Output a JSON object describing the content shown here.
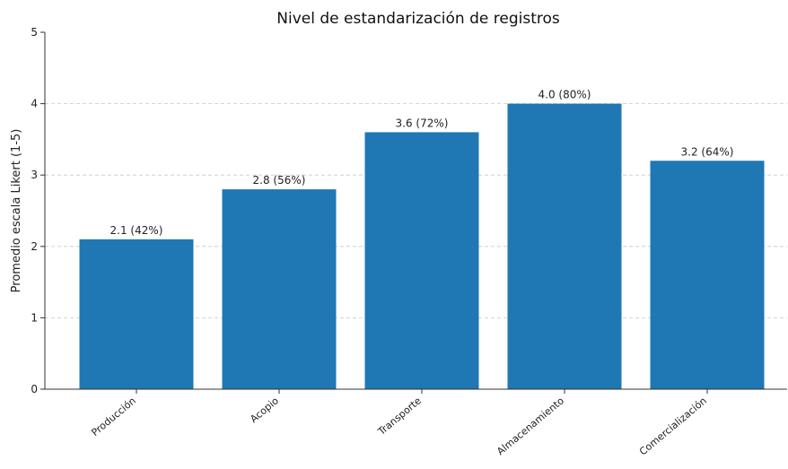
{
  "chart_data": {
    "type": "bar",
    "title": "Nivel de estandarización de registros",
    "xlabel": "",
    "ylabel": "Promedio escala Likert (1-5)",
    "categories": [
      "Producción",
      "Acopio",
      "Transporte",
      "Almacenamiento",
      "Comercialización"
    ],
    "values": [
      2.1,
      2.8,
      3.6,
      4.0,
      3.2
    ],
    "data_labels": [
      "2.1 (42%)",
      "2.8 (56%)",
      "3.6 (72%)",
      "4.0 (80%)",
      "3.2 (64%)"
    ],
    "ylim": [
      0,
      5
    ],
    "yticks": [
      0,
      1,
      2,
      3,
      4,
      5
    ],
    "grid": true,
    "bar_color": "#1f77b4"
  }
}
